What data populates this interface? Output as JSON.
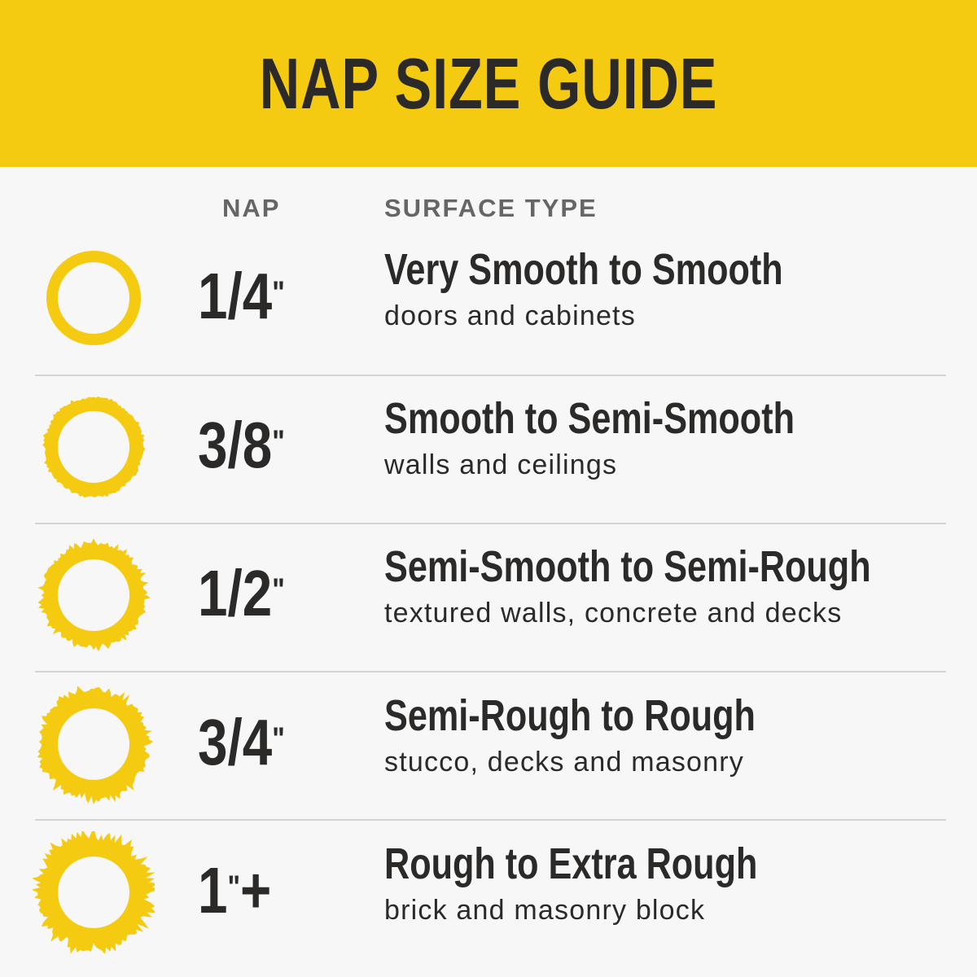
{
  "title": "NAP SIZE GUIDE",
  "columns": {
    "nap": "NAP",
    "surface": "SURFACE TYPE"
  },
  "colors": {
    "brand_yellow": "#f5cb12",
    "text": "#2b2a29",
    "column_header": "#666666"
  },
  "rows": [
    {
      "nap": "1/4",
      "suffix": "",
      "surface": "Very Smooth to Smooth",
      "uses": "doors and cabinets",
      "ring_roughness": 0
    },
    {
      "nap": "3/8",
      "suffix": "",
      "surface": "Smooth to Semi-Smooth",
      "uses": "walls and ceilings",
      "ring_roughness": 1
    },
    {
      "nap": "1/2",
      "suffix": "",
      "surface": "Semi-Smooth to Semi-Rough",
      "uses": "textured walls, concrete and decks",
      "ring_roughness": 2
    },
    {
      "nap": "3/4",
      "suffix": "",
      "surface": "Semi-Rough to Rough",
      "uses": "stucco, decks and masonry",
      "ring_roughness": 3
    },
    {
      "nap": "1",
      "suffix": "+",
      "surface": "Rough to Extra Rough",
      "uses": "brick and masonry block",
      "ring_roughness": 4
    }
  ],
  "inch_mark": "\""
}
